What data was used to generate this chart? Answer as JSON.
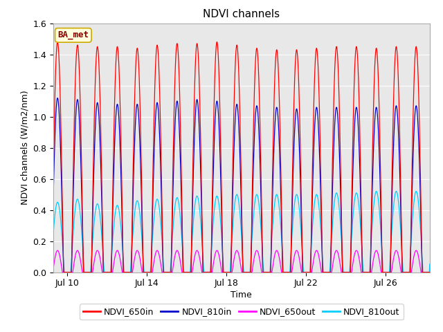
{
  "title": "NDVI channels",
  "xlabel": "Time",
  "ylabel": "NDVI channels (W/m2/nm)",
  "ylim": [
    0.0,
    1.6
  ],
  "xlim_start": 9.3,
  "xlim_end": 28.2,
  "xtick_labels": [
    "Jul 10",
    "Jul 14",
    "Jul 18",
    "Jul 22",
    "Jul 26"
  ],
  "xtick_days": [
    10,
    14,
    18,
    22,
    26
  ],
  "legend_entries": [
    "NDVI_650in",
    "NDVI_810in",
    "NDVI_650out",
    "NDVI_810out"
  ],
  "legend_colors": [
    "#ff0000",
    "#0000cc",
    "#ff00ff",
    "#00ccff"
  ],
  "annotation_text": "BA_met",
  "annotation_bg": "#ffffdd",
  "annotation_border": "#ccaa00",
  "bg_color": "#e8e8e8",
  "title_fontsize": 11,
  "label_fontsize": 9,
  "tick_fontsize": 9,
  "legend_fontsize": 9
}
